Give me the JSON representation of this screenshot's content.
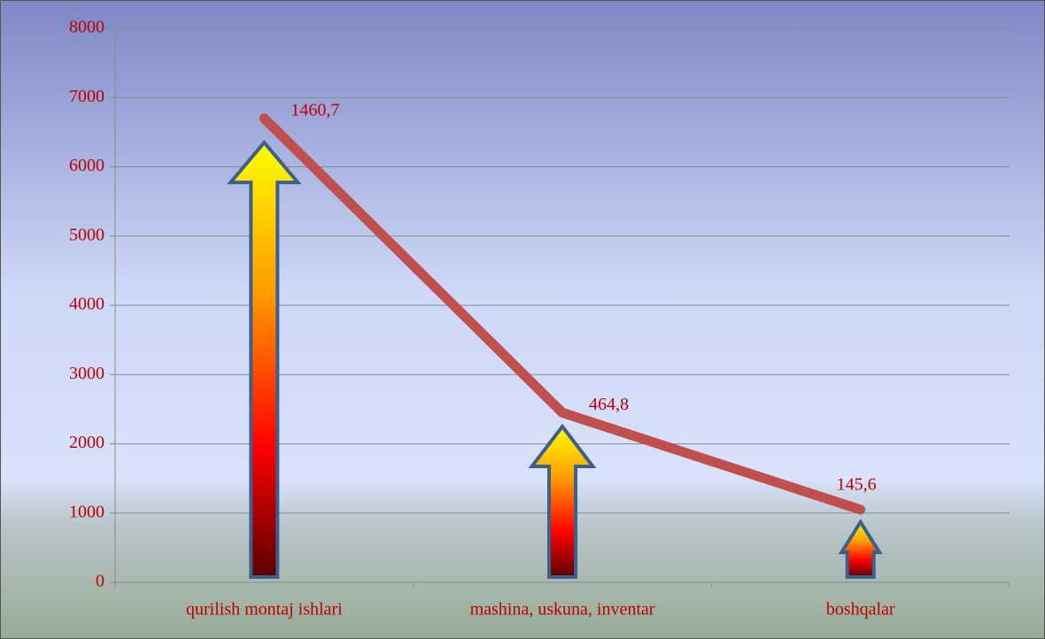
{
  "chart_data": {
    "type": "bar-line",
    "categories": [
      "qurilish montaj ishlari",
      "mashina, uskuna, inventar",
      "boshqalar"
    ],
    "series": [
      {
        "type": "bar",
        "color": "#ff0000",
        "values": [
          6350,
          2250,
          870
        ]
      },
      {
        "type": "line",
        "color": "#c0504d",
        "values": [
          6700,
          2450,
          1050
        ]
      }
    ],
    "annotations": [
      "1460,7",
      "464,8",
      "145,6"
    ],
    "ylim": [
      0,
      8000
    ],
    "yticks": [
      0,
      1000,
      2000,
      3000,
      4000,
      5000,
      6000,
      7000,
      8000
    ],
    "grid": true
  }
}
